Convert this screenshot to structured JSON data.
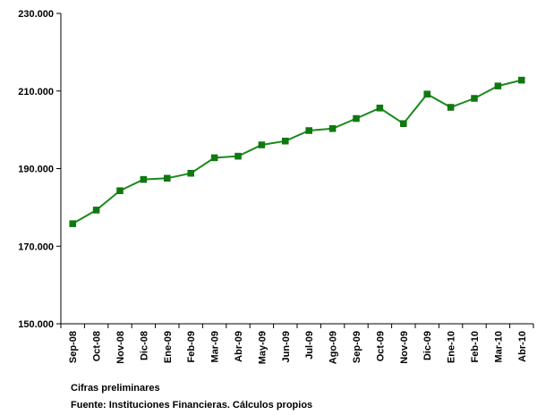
{
  "chart_data": {
    "type": "line",
    "title": "",
    "xlabel": "",
    "ylabel": "",
    "categories": [
      "Sep-08",
      "Oct-08",
      "Nov-08",
      "Dic-08",
      "Ene-09",
      "Feb-09",
      "Mar-09",
      "Abr-09",
      "May-09",
      "Jun-09",
      "Jul-09",
      "Ago-09",
      "Sep-09",
      "Oct-09",
      "Nov-09",
      "Dic-09",
      "Ene-10",
      "Feb-10",
      "Mar-10",
      "Abr-10"
    ],
    "series": [
      {
        "values": [
          175.8,
          179.3,
          184.3,
          187.2,
          187.5,
          188.8,
          192.8,
          193.2,
          196.1,
          197.1,
          199.8,
          200.3,
          202.9,
          205.6,
          201.6,
          209.2,
          205.8,
          208.1,
          211.3,
          212.8
        ],
        "color": "#1a8a1a"
      }
    ],
    "yticks": [
      "150.000",
      "170.000",
      "190.000",
      "210.000",
      "230.000"
    ],
    "ylim": [
      150,
      230
    ],
    "grid": false,
    "marker": "square"
  },
  "notes": {
    "line1": "Cifras preliminares",
    "line2": "Fuente: Instituciones Financieras. Cálculos propios"
  }
}
